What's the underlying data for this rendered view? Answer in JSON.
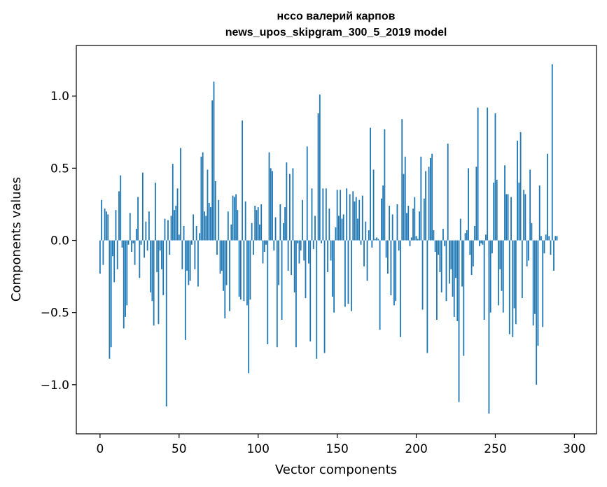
{
  "chart_data": {
    "type": "bar",
    "title": "нссо валерий карпов",
    "subtitle": "news_upos_skipgram_300_5_2019 model",
    "xlabel": "Vector components",
    "ylabel": "Components values",
    "xlim": [
      -15,
      314
    ],
    "ylim": [
      -1.34,
      1.35
    ],
    "xticks": [
      0,
      50,
      100,
      150,
      200,
      250,
      300
    ],
    "xtick_labels": [
      "0",
      "50",
      "100",
      "150",
      "200",
      "250",
      "300"
    ],
    "yticks": [
      -1.0,
      -0.5,
      0.0,
      0.5,
      1.0
    ],
    "ytick_labels": [
      "−1.0",
      "−0.5",
      "0.0",
      "0.5",
      "1.0"
    ],
    "grid": false,
    "bar_color": "#1f77b4",
    "series": [
      {
        "x_start": 0,
        "values": [
          -0.23,
          0.28,
          -0.17,
          0.22,
          0.2,
          0.18,
          -0.82,
          -0.74,
          -0.11,
          -0.29,
          0.21,
          -0.2,
          0.34,
          0.45,
          -0.05,
          -0.61,
          -0.53,
          -0.45,
          -0.03,
          0.19,
          -0.08,
          -0.02,
          -0.17,
          0.08,
          0.3,
          -0.26,
          -0.03,
          0.47,
          -0.12,
          0.13,
          -0.07,
          0.2,
          -0.36,
          -0.42,
          -0.59,
          0.4,
          -0.22,
          -0.58,
          -0.07,
          -0.2,
          -0.38,
          0.15,
          -1.15,
          0.14,
          -0.1,
          0.17,
          0.53,
          0.21,
          0.24,
          0.36,
          0.04,
          0.64,
          -0.2,
          0.1,
          -0.69,
          -0.21,
          -0.31,
          -0.28,
          -0.03,
          0.18,
          -0.2,
          0.1,
          -0.32,
          0.05,
          0.58,
          0.61,
          0.2,
          0.17,
          0.49,
          0.26,
          0.23,
          0.97,
          1.1,
          0.41,
          -0.1,
          0.28,
          -0.23,
          -0.21,
          -0.35,
          -0.54,
          -0.31,
          0.2,
          -0.49,
          0.11,
          0.31,
          0.3,
          0.32,
          0.21,
          -0.39,
          -0.41,
          0.83,
          -0.42,
          0.27,
          -0.45,
          -0.92,
          -0.41,
          0.12,
          -0.1,
          0.24,
          0.21,
          0.23,
          0.11,
          0.25,
          -0.16,
          -0.08,
          -0.03,
          -0.72,
          0.61,
          0.5,
          0.48,
          -0.07,
          0.16,
          -0.74,
          -0.31,
          0.25,
          -0.55,
          0.12,
          0.23,
          0.54,
          -0.21,
          0.46,
          -0.24,
          0.5,
          -0.36,
          -0.74,
          -0.02,
          -0.16,
          -0.07,
          0.28,
          -0.14,
          -0.4,
          0.65,
          -0.16,
          -0.7,
          0.36,
          -0.06,
          0.17,
          -0.82,
          0.88,
          1.01,
          -0.02,
          0.36,
          -0.78,
          0.36,
          -0.22,
          0.22,
          -0.14,
          -0.39,
          -0.5,
          0.09,
          0.35,
          0.17,
          0.35,
          0.15,
          0.18,
          -0.46,
          0.36,
          -0.44,
          0.32,
          -0.49,
          0.34,
          0.27,
          0.3,
          0.15,
          0.28,
          -0.03,
          0.31,
          -0.18,
          0.13,
          -0.28,
          0.07,
          0.78,
          -0.05,
          0.49,
          0.01,
          0.02,
          0.01,
          -0.62,
          0.29,
          0.38,
          0.77,
          -0.12,
          -0.23,
          0.24,
          -0.38,
          0.18,
          -0.45,
          -0.42,
          0.25,
          -0.07,
          -0.67,
          0.84,
          0.46,
          0.58,
          0.19,
          0.24,
          -0.04,
          0.02,
          0.22,
          0.3,
          0.03,
          0.01,
          0.2,
          0.58,
          -0.48,
          0.29,
          0.48,
          -0.78,
          0.51,
          0.57,
          0.6,
          0.07,
          -0.08,
          -0.55,
          -0.1,
          -0.22,
          -0.36,
          0.08,
          -0.04,
          -0.42,
          0.67,
          -0.3,
          -0.2,
          -0.39,
          -0.53,
          -0.26,
          -0.56,
          -1.12,
          0.15,
          -0.32,
          -0.8,
          0.05,
          0.07,
          0.5,
          -0.1,
          -0.24,
          -0.18,
          0.1,
          0.51,
          0.92,
          -0.04,
          -0.02,
          -0.03,
          -0.55,
          0.04,
          0.92,
          -1.2,
          -0.5,
          -0.09,
          0.4,
          0.88,
          0.42,
          -0.45,
          -0.2,
          -0.35,
          -0.5,
          0.52,
          0.32,
          0.32,
          -0.65,
          0.3,
          -0.67,
          -0.47,
          -0.58,
          0.69,
          0.4,
          0.75,
          -0.4,
          0.35,
          0.32,
          -0.18,
          -0.14,
          0.49,
          0.12,
          -0.59,
          -0.51,
          -1.0,
          -0.73,
          0.38,
          0.03,
          -0.6,
          -0.09,
          0.04,
          0.6,
          0.03,
          -0.1,
          1.22,
          -0.21,
          0.03,
          0.03
        ]
      }
    ]
  }
}
